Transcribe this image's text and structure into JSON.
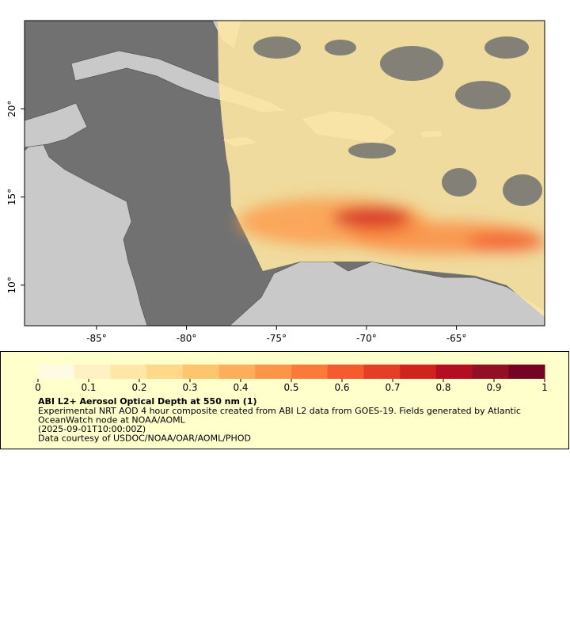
{
  "map": {
    "xlim": [
      -89,
      -60.1
    ],
    "ylim": [
      7.7,
      25
    ],
    "xticks": [
      {
        "value": -85,
        "label": "-85°"
      },
      {
        "value": -80,
        "label": "-80°"
      },
      {
        "value": -75,
        "label": "-75°"
      },
      {
        "value": -70,
        "label": "-70°"
      },
      {
        "value": -65,
        "label": "-65°"
      }
    ],
    "yticks": [
      {
        "value": 10,
        "label": "10°"
      },
      {
        "value": 15,
        "label": "15°"
      },
      {
        "value": 20,
        "label": "20°"
      }
    ],
    "ocean_color": "#717171",
    "land_color": "#c9c9c9"
  },
  "colorbar": {
    "lim": [
      0,
      1
    ],
    "ticks": [
      0,
      0.1,
      0.2,
      0.3,
      0.4,
      0.5,
      0.6,
      0.7,
      0.8,
      0.9,
      1
    ],
    "colors": [
      "#fffbe3",
      "#fff1c4",
      "#fee7a6",
      "#fed98a",
      "#fec56f",
      "#fdae5a",
      "#fd9547",
      "#fb7a3a",
      "#f45c30",
      "#e53e27",
      "#d0231f",
      "#b40e23",
      "#921024",
      "#750424"
    ]
  },
  "legend": {
    "title": "ABI L2+ Aerosol Optical Depth at 550 nm (1)",
    "lines": [
      "Experimental NRT AOD 4 hour composite created from ABI L2 data from GOES-19. Fields generated by Atlantic",
      "OceanWatch node at NOAA/AOML",
      "(2025-09-01T10:00:00Z)",
      "Data courtesy of USDOC/NOAA/OAR/AOML/PHOD"
    ]
  }
}
